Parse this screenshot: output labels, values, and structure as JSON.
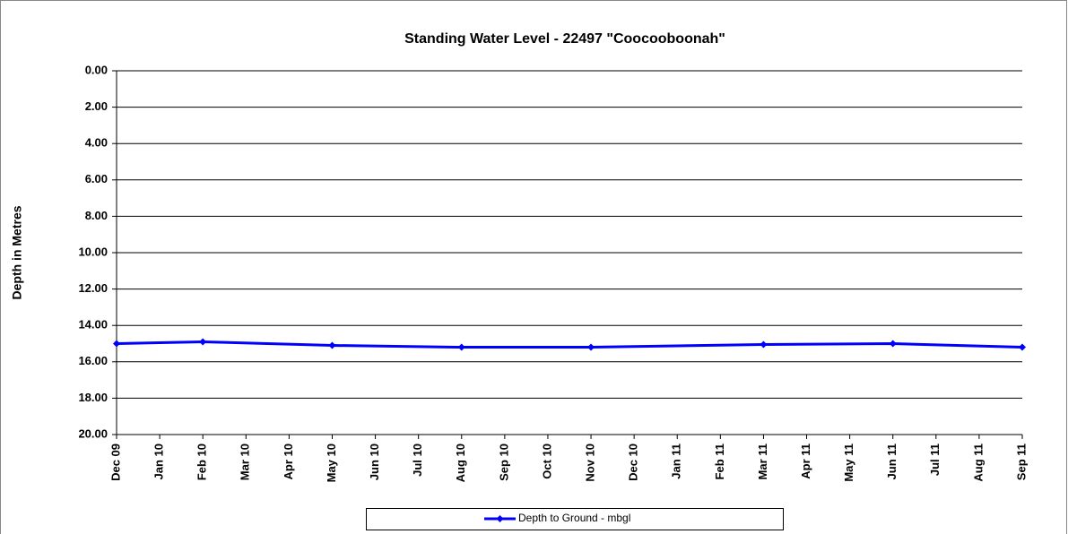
{
  "chart_data": {
    "type": "line",
    "title": "Standing Water Level - 22497 \"Coocooboonah\"",
    "y_label": "Depth in Metres",
    "categories": [
      "Dec 09",
      "Jan 10",
      "Feb 10",
      "Mar 10",
      "Apr 10",
      "May 10",
      "Jun 10",
      "Jul 10",
      "Aug 10",
      "Sep 10",
      "Oct 10",
      "Nov 10",
      "Dec 10",
      "Jan 11",
      "Feb 11",
      "Mar 11",
      "Apr 11",
      "May 11",
      "Jun 11",
      "Jul 11",
      "Aug 11",
      "Sep 11"
    ],
    "series": [
      {
        "name": "Depth to Ground - mbgl",
        "color": "#0000ff",
        "x": [
          "Dec 09",
          "Feb 10",
          "May 10",
          "Aug 10",
          "Nov 10",
          "Mar 11",
          "Jun 11",
          "Sep 11"
        ],
        "values": [
          15.0,
          14.9,
          15.1,
          15.2,
          15.2,
          15.05,
          15.0,
          15.2
        ]
      }
    ],
    "ylim": [
      0,
      20
    ],
    "y_inverted": true,
    "yticks": [
      {
        "value": 0,
        "label": "0.00"
      },
      {
        "value": 2,
        "label": "2.00"
      },
      {
        "value": 4,
        "label": "4.00"
      },
      {
        "value": 6,
        "label": "6.00"
      },
      {
        "value": 8,
        "label": "8.00"
      },
      {
        "value": 10,
        "label": "10.00"
      },
      {
        "value": 12,
        "label": "12.00"
      },
      {
        "value": 14,
        "label": "14.00"
      },
      {
        "value": 16,
        "label": "16.00"
      },
      {
        "value": 18,
        "label": "18.00"
      },
      {
        "value": 20,
        "label": "20.00"
      }
    ],
    "grid": true,
    "legend": "bottom"
  }
}
